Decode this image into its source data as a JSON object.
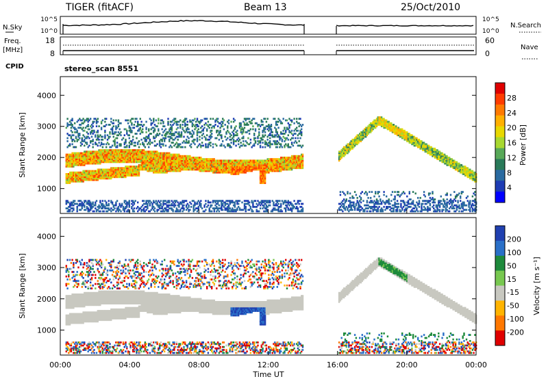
{
  "header": {
    "radar": "TIGER (fitACF)",
    "beam": "Beam 13",
    "date": "25/Oct/2010"
  },
  "top_panels": {
    "nsky_label": "N.Sky",
    "nsearch_label": "N.Search",
    "nsky_ticks": [
      "10^5",
      "10^0"
    ],
    "nsky_right_ticks": [
      "10^5",
      "10^0"
    ],
    "freq_label_line1": "Freq.",
    "freq_label_line2": "[MHz]",
    "freq_ticks": [
      "18",
      "8"
    ],
    "nave_label": "Nave",
    "nave_ticks": [
      "60",
      "0"
    ],
    "cpid_label": "CPID",
    "cpid_value": "stereo_scan 8551"
  },
  "colorbars": {
    "power": {
      "label": "Power [dB]",
      "ticks": [
        "28",
        "24",
        "20",
        "16",
        "12",
        "8",
        "4"
      ],
      "colors": [
        "#e00000",
        "#ff3c00",
        "#ff7a00",
        "#ffb000",
        "#e8d800",
        "#a8d830",
        "#58a858",
        "#2a7a5a",
        "#2a6aa0",
        "#1e3cb4",
        "#0000ff"
      ]
    },
    "velocity": {
      "label": "Velocity [m s⁻¹]",
      "ticks": [
        "200",
        "100",
        "50",
        "15",
        "-15",
        "-50",
        "-100",
        "-200"
      ],
      "colors": [
        "#2040b0",
        "#2a70c8",
        "#1e8a3c",
        "#78c850",
        "#c8c8c0",
        "#ffb400",
        "#ff7800",
        "#e00000"
      ]
    }
  },
  "axes": {
    "ylabel": "Slant Range [km]",
    "yticks": [
      "4000",
      "3000",
      "2000",
      "1000"
    ],
    "xlabel": "Time UT",
    "xticks": [
      "00:00",
      "04:00",
      "08:00",
      "12:00",
      "16:00",
      "20:00",
      "00:00"
    ]
  },
  "chart_data": [
    {
      "type": "heatmap",
      "title": "Power",
      "xlabel": "Time UT",
      "ylabel": "Slant Range [km]",
      "xlim": [
        0,
        24
      ],
      "ylim": [
        200,
        4600
      ],
      "data_gap_hours": [
        14,
        16
      ],
      "colorbar_label": "Power [dB]",
      "colorbar_range": [
        0,
        32
      ],
      "echo_bands": [
        {
          "start_hour": 0.3,
          "end_hour": 14,
          "range_km_start": 1700,
          "range_km_end": 2000,
          "typical_power_db": 22
        },
        {
          "start_hour": 0.3,
          "end_hour": 7.5,
          "range_km_start": 1100,
          "range_km_end": 1500,
          "typical_power_db": 18
        },
        {
          "start_hour": 16,
          "end_hour": 18.3,
          "range_km_start": 2000,
          "range_km_end": 3200,
          "typical_power_db": 14
        },
        {
          "start_hour": 18.3,
          "end_hour": 24,
          "range_km_start": 3200,
          "range_km_end": 1300,
          "typical_power_db": 18
        }
      ]
    },
    {
      "type": "heatmap",
      "title": "Velocity",
      "xlabel": "Time UT",
      "ylabel": "Slant Range [km]",
      "xlim": [
        0,
        24
      ],
      "ylim": [
        200,
        4600
      ],
      "data_gap_hours": [
        14,
        16
      ],
      "colorbar_label": "Velocity [m s⁻¹]",
      "colorbar_range": [
        -200,
        200
      ],
      "echo_bands": [
        {
          "start_hour": 0.3,
          "end_hour": 14,
          "range_km_start": 1500,
          "range_km_end": 2200,
          "typical_velocity_ms": 0
        },
        {
          "start_hour": 9.8,
          "end_hour": 11.8,
          "range_km_start": 1200,
          "range_km_end": 1700,
          "typical_velocity_ms": 100
        },
        {
          "start_hour": 16,
          "end_hour": 24,
          "range_km_start": 1500,
          "range_km_end": 3200,
          "typical_velocity_ms": 0
        }
      ]
    }
  ]
}
